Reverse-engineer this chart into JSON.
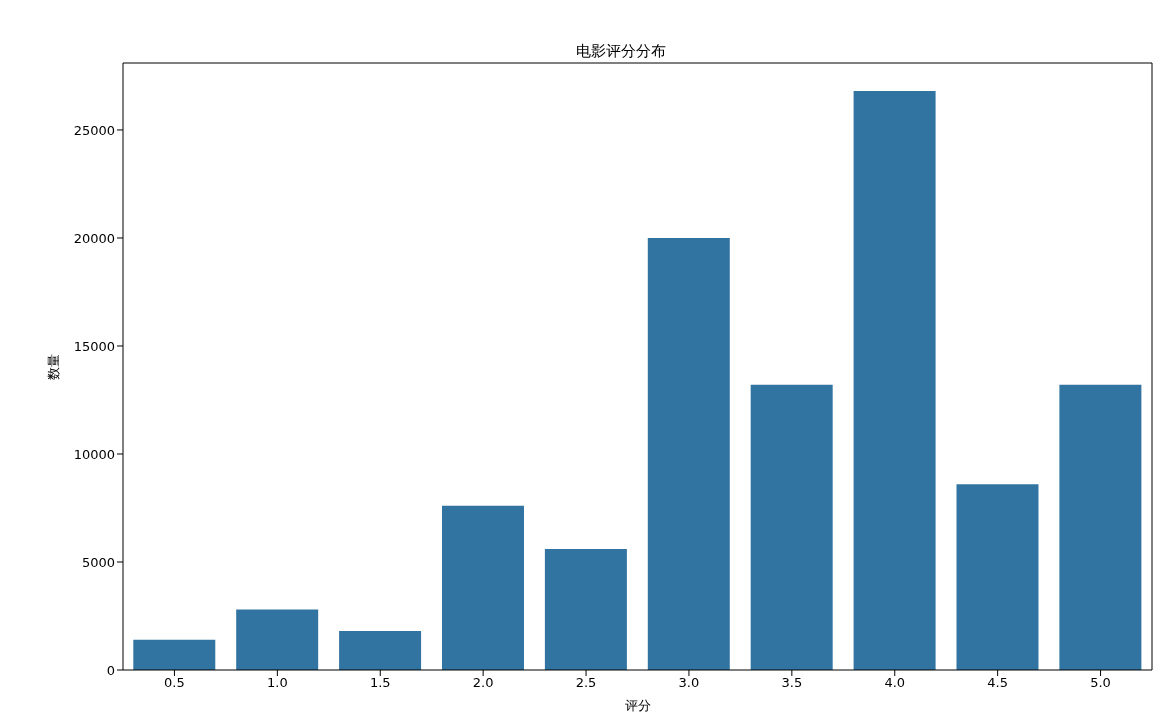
{
  "chart_data": {
    "type": "bar",
    "title": "电影评分分布",
    "xlabel": "评分",
    "ylabel": "数量",
    "categories": [
      "0.5",
      "1.0",
      "1.5",
      "2.0",
      "2.5",
      "3.0",
      "3.5",
      "4.0",
      "4.5",
      "5.0"
    ],
    "values": [
      1400,
      2800,
      1800,
      7600,
      5600,
      20000,
      13200,
      26800,
      8600,
      13200
    ],
    "color": "#3274a1",
    "ylim": [
      0,
      28100
    ],
    "yticks": [
      0,
      5000,
      10000,
      15000,
      20000,
      25000
    ],
    "grid": false,
    "legend": false
  }
}
